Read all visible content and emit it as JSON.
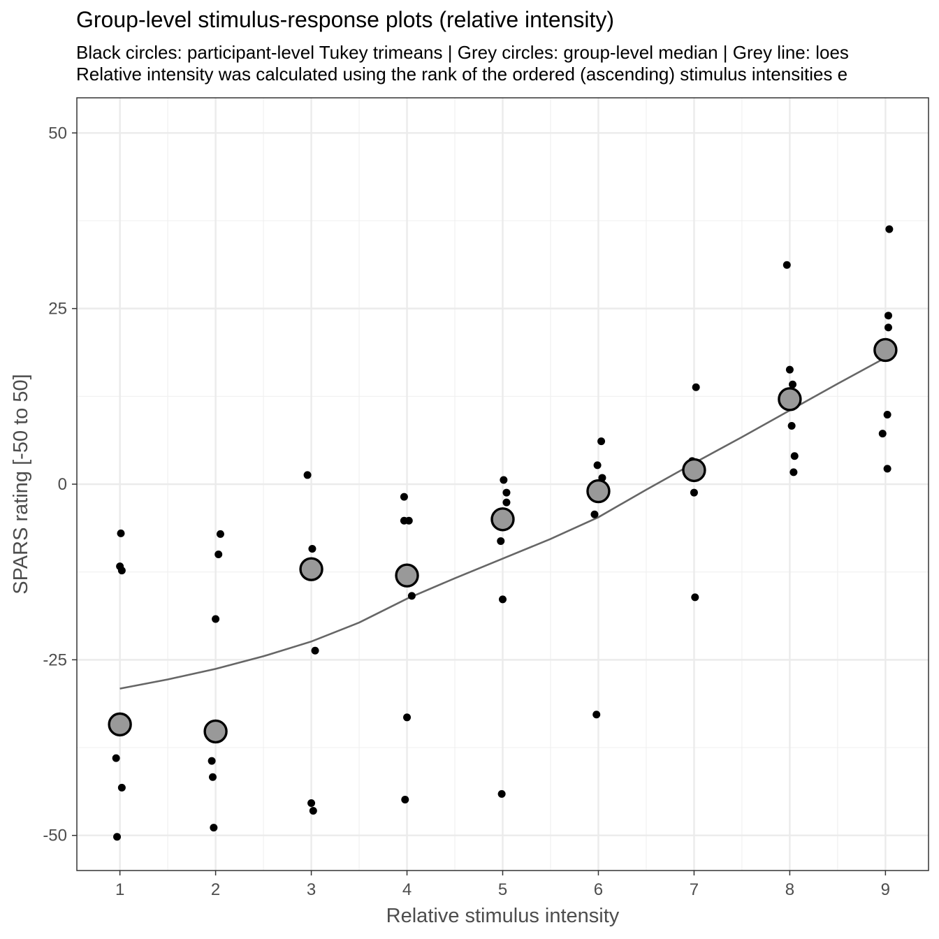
{
  "chart_data": {
    "type": "scatter",
    "title": "Group-level stimulus-response plots (relative intensity)",
    "subtitle_lines": [
      "Black circles: participant-level Tukey trimeans | Grey circles: group-level median | Grey line: loes",
      "Relative intensity was calculated using the rank of the ordered (ascending) stimulus intensities e"
    ],
    "xlabel": "Relative stimulus intensity",
    "ylabel": "SPARS rating [-50 to 50]",
    "xlim": [
      0.55,
      9.45
    ],
    "ylim": [
      -55,
      55
    ],
    "x_ticks": [
      1,
      2,
      3,
      4,
      5,
      6,
      7,
      8,
      9
    ],
    "y_ticks": [
      -50,
      -25,
      0,
      25,
      50
    ],
    "y_tick_labels": [
      "-50",
      "-25",
      "0",
      "25",
      "50"
    ],
    "grid": true,
    "series": [
      {
        "type": "scatter",
        "color": "#000000",
        "points": [
          {
            "x": 0.96,
            "y": -39.0
          },
          {
            "x": 0.97,
            "y": -50.2
          },
          {
            "x": 1.0,
            "y": -11.7
          },
          {
            "x": 1.01,
            "y": -7.0
          },
          {
            "x": 1.02,
            "y": -12.3
          },
          {
            "x": 1.02,
            "y": -43.2
          },
          {
            "x": 1.96,
            "y": -39.4
          },
          {
            "x": 1.97,
            "y": -41.7
          },
          {
            "x": 1.98,
            "y": -48.9
          },
          {
            "x": 2.0,
            "y": -19.2
          },
          {
            "x": 2.03,
            "y": -10.0
          },
          {
            "x": 2.05,
            "y": -7.1
          },
          {
            "x": 2.96,
            "y": 1.3
          },
          {
            "x": 3.0,
            "y": -45.4
          },
          {
            "x": 3.01,
            "y": -9.2
          },
          {
            "x": 3.02,
            "y": -46.5
          },
          {
            "x": 3.04,
            "y": -23.7
          },
          {
            "x": 3.97,
            "y": -1.8
          },
          {
            "x": 3.97,
            "y": -5.2
          },
          {
            "x": 3.98,
            "y": -44.9
          },
          {
            "x": 4.0,
            "y": -33.2
          },
          {
            "x": 4.02,
            "y": -5.2
          },
          {
            "x": 4.05,
            "y": -15.9
          },
          {
            "x": 4.98,
            "y": -8.1
          },
          {
            "x": 4.99,
            "y": -44.1
          },
          {
            "x": 5.0,
            "y": -16.4
          },
          {
            "x": 5.01,
            "y": 0.6
          },
          {
            "x": 5.04,
            "y": -2.6
          },
          {
            "x": 5.04,
            "y": -1.2
          },
          {
            "x": 5.96,
            "y": -4.3
          },
          {
            "x": 5.98,
            "y": -32.8
          },
          {
            "x": 5.99,
            "y": 2.7
          },
          {
            "x": 6.03,
            "y": 6.1
          },
          {
            "x": 6.04,
            "y": 0.9
          },
          {
            "x": 6.98,
            "y": 3.3
          },
          {
            "x": 7.0,
            "y": -1.2
          },
          {
            "x": 7.01,
            "y": -16.1
          },
          {
            "x": 7.02,
            "y": 13.8
          },
          {
            "x": 7.97,
            "y": 31.2
          },
          {
            "x": 8.0,
            "y": 16.3
          },
          {
            "x": 8.02,
            "y": 8.3
          },
          {
            "x": 8.03,
            "y": 14.2
          },
          {
            "x": 8.04,
            "y": 1.7
          },
          {
            "x": 8.05,
            "y": 4.0
          },
          {
            "x": 8.97,
            "y": 7.2
          },
          {
            "x": 9.02,
            "y": 2.2
          },
          {
            "x": 9.02,
            "y": 9.9
          },
          {
            "x": 9.03,
            "y": 22.3
          },
          {
            "x": 9.03,
            "y": 24.0
          },
          {
            "x": 9.04,
            "y": 36.3
          }
        ]
      },
      {
        "type": "scatter",
        "color": "#999999",
        "points": [
          {
            "x": 1,
            "y": -34.2
          },
          {
            "x": 2,
            "y": -35.2
          },
          {
            "x": 3,
            "y": -12.1
          },
          {
            "x": 4,
            "y": -13.0
          },
          {
            "x": 5,
            "y": -5.0
          },
          {
            "x": 6,
            "y": -1.0
          },
          {
            "x": 7,
            "y": 2.0
          },
          {
            "x": 8,
            "y": 12.1
          },
          {
            "x": 9,
            "y": 19.1
          }
        ]
      },
      {
        "type": "line",
        "color": "#666666",
        "points": [
          {
            "x": 1,
            "y": -29.1
          },
          {
            "x": 1.5,
            "y": -27.8
          },
          {
            "x": 2,
            "y": -26.3
          },
          {
            "x": 2.5,
            "y": -24.5
          },
          {
            "x": 3,
            "y": -22.4
          },
          {
            "x": 3.5,
            "y": -19.7
          },
          {
            "x": 4,
            "y": -16.3
          },
          {
            "x": 4.5,
            "y": -13.4
          },
          {
            "x": 5,
            "y": -10.6
          },
          {
            "x": 5.5,
            "y": -7.8
          },
          {
            "x": 6,
            "y": -4.7
          },
          {
            "x": 6.5,
            "y": -0.8
          },
          {
            "x": 7,
            "y": 3.0
          },
          {
            "x": 7.5,
            "y": 6.7
          },
          {
            "x": 8,
            "y": 10.5
          },
          {
            "x": 8.5,
            "y": 14.3
          },
          {
            "x": 9,
            "y": 18.0
          }
        ]
      }
    ]
  }
}
